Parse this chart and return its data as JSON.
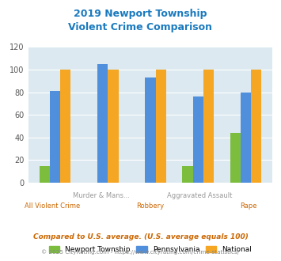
{
  "title": "2019 Newport Township\nViolent Crime Comparison",
  "title_color": "#1a7abf",
  "categories": [
    "All Violent Crime",
    "Murder & Mans...",
    "Robbery",
    "Aggravated Assault",
    "Rape"
  ],
  "newport": [
    15,
    0,
    0,
    15,
    44
  ],
  "pennsylvania": [
    81,
    105,
    93,
    76,
    80
  ],
  "national": [
    100,
    100,
    100,
    100,
    100
  ],
  "newport_color": "#7cbd3e",
  "pennsylvania_color": "#4f8fdc",
  "national_color": "#f5a623",
  "ylim": [
    0,
    120
  ],
  "yticks": [
    0,
    20,
    40,
    60,
    80,
    100,
    120
  ],
  "bar_width": 0.22,
  "plot_bg": "#dce9f0",
  "legend_labels": [
    "Newport Township",
    "Pennsylvania",
    "National"
  ],
  "footnote1": "Compared to U.S. average. (U.S. average equals 100)",
  "footnote2": "© 2025 CityRating.com - https://www.cityrating.com/crime-statistics/",
  "footnote1_color": "#cc6600",
  "footnote2_color": "#888888",
  "label_top": [
    "",
    "Murder & Mans...",
    "",
    "Aggravated Assault",
    ""
  ],
  "label_bot": [
    "All Violent Crime",
    "",
    "Robbery",
    "",
    "Rape"
  ],
  "label_top_color": "#999999",
  "label_bot_color": "#cc6600"
}
